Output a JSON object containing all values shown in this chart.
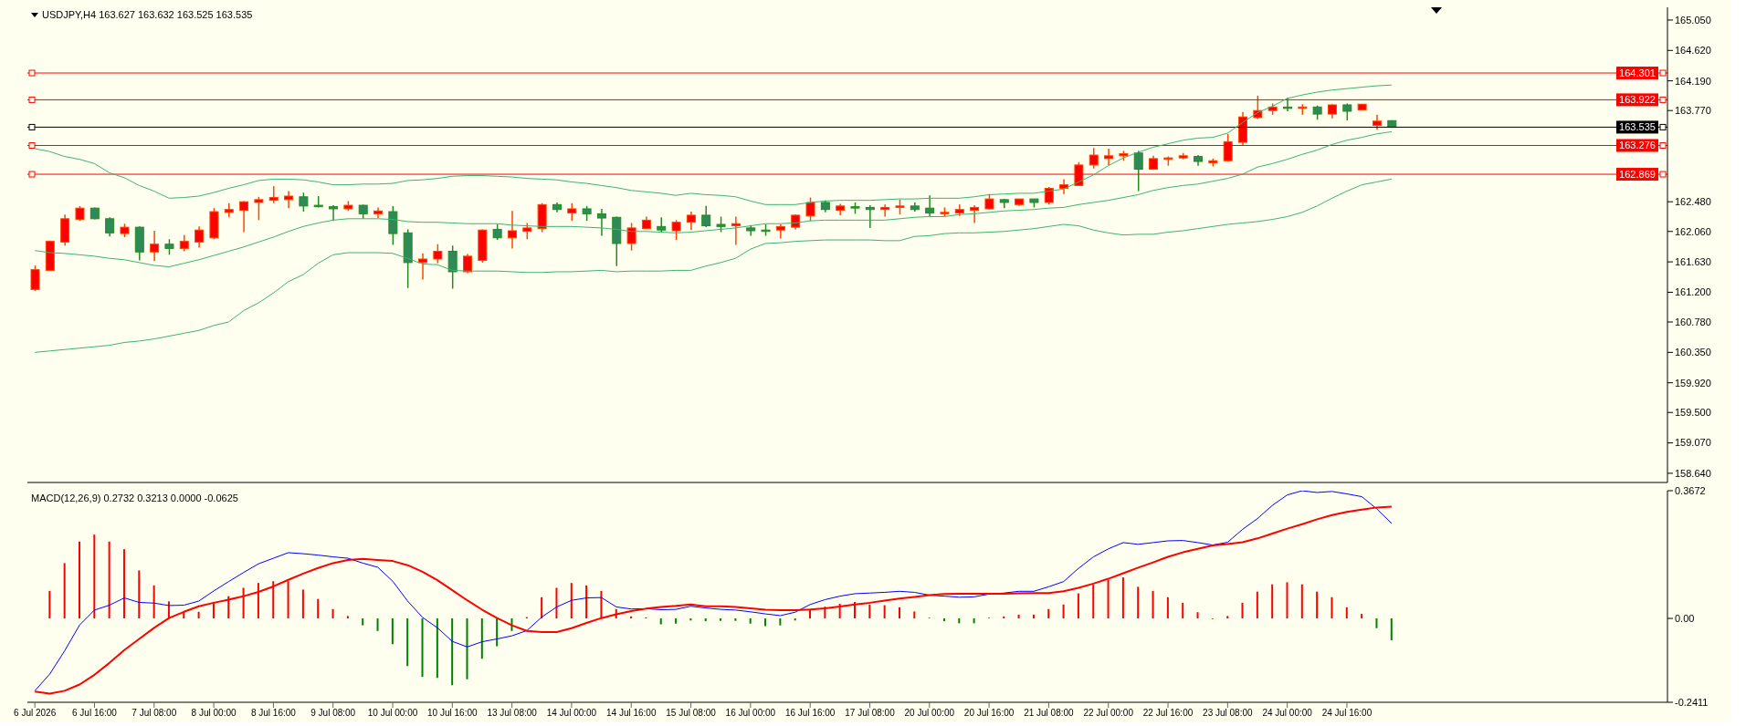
{
  "chart_data": [
    {
      "type": "candlestick",
      "title": "USDJPY,H4 163.627 163.632 163.525 163.535",
      "tick_labels": "y",
      "marker": "none",
      "categories": [
        null,
        null,
        null,
        null,
        null,
        null,
        null,
        null,
        null,
        null,
        null,
        null,
        null,
        null,
        null,
        null,
        null,
        null,
        null,
        null,
        null,
        null,
        null,
        null,
        null,
        null,
        null,
        null,
        null,
        null,
        null,
        null,
        null,
        null,
        null,
        null,
        null,
        null,
        null,
        null,
        null,
        null,
        null,
        null,
        null,
        null,
        null,
        null,
        null,
        null,
        null,
        null,
        null,
        null,
        null,
        null,
        null,
        null,
        null,
        null,
        null,
        null,
        null,
        null,
        null,
        null,
        null,
        null,
        null,
        null,
        null,
        null,
        null,
        null,
        null,
        null,
        null,
        null,
        null,
        null,
        null,
        null,
        null,
        null,
        null,
        null,
        null,
        null,
        null,
        null,
        null,
        null
      ],
      "ohlc": [
        [
          161.24,
          161.58,
          161.22,
          161.52
        ],
        [
          161.51,
          161.93,
          161.51,
          161.92
        ],
        [
          161.91,
          162.3,
          161.86,
          162.24
        ],
        [
          162.23,
          162.42,
          162.21,
          162.39
        ],
        [
          162.39,
          162.4,
          162.23,
          162.24
        ],
        [
          162.24,
          162.26,
          161.99,
          162.04
        ],
        [
          162.03,
          162.17,
          161.98,
          162.12
        ],
        [
          162.12,
          162.13,
          161.65,
          161.77
        ],
        [
          161.77,
          162.07,
          161.64,
          161.88
        ],
        [
          161.88,
          161.95,
          161.73,
          161.82
        ],
        [
          161.82,
          162.01,
          161.78,
          161.92
        ],
        [
          161.91,
          162.13,
          161.83,
          162.08
        ],
        [
          161.97,
          162.39,
          161.95,
          162.34
        ],
        [
          162.33,
          162.46,
          162.26,
          162.37
        ],
        [
          162.36,
          162.49,
          162.05,
          162.48
        ],
        [
          162.47,
          162.55,
          162.22,
          162.51
        ],
        [
          162.5,
          162.7,
          162.46,
          162.54
        ],
        [
          162.51,
          162.63,
          162.39,
          162.56
        ],
        [
          162.55,
          162.61,
          162.34,
          162.42
        ],
        [
          162.43,
          162.56,
          162.4,
          162.41
        ],
        [
          162.41,
          162.43,
          162.21,
          162.38
        ],
        [
          162.38,
          162.49,
          162.35,
          162.43
        ],
        [
          162.43,
          162.44,
          162.24,
          162.31
        ],
        [
          162.31,
          162.4,
          162.25,
          162.35
        ],
        [
          162.34,
          162.42,
          161.87,
          162.03
        ],
        [
          162.04,
          162.09,
          161.26,
          161.62
        ],
        [
          161.62,
          161.75,
          161.38,
          161.67
        ],
        [
          161.67,
          161.88,
          161.61,
          161.78
        ],
        [
          161.78,
          161.86,
          161.25,
          161.49
        ],
        [
          161.49,
          161.74,
          161.47,
          161.71
        ],
        [
          161.65,
          162.09,
          161.62,
          162.08
        ],
        [
          162.09,
          162.16,
          161.94,
          161.97
        ],
        [
          161.97,
          162.35,
          161.82,
          162.07
        ],
        [
          162.06,
          162.18,
          161.95,
          162.11
        ],
        [
          162.1,
          162.46,
          162.05,
          162.44
        ],
        [
          162.44,
          162.47,
          162.33,
          162.37
        ],
        [
          162.32,
          162.46,
          162.21,
          162.38
        ],
        [
          162.38,
          162.42,
          162.21,
          162.31
        ],
        [
          162.31,
          162.38,
          162.0,
          162.25
        ],
        [
          162.26,
          162.27,
          161.57,
          161.89
        ],
        [
          161.89,
          162.18,
          161.79,
          162.11
        ],
        [
          162.1,
          162.27,
          162.1,
          162.22
        ],
        [
          162.13,
          162.26,
          162.05,
          162.08
        ],
        [
          162.07,
          162.22,
          161.94,
          162.19
        ],
        [
          162.19,
          162.34,
          162.08,
          162.29
        ],
        [
          162.29,
          162.42,
          162.12,
          162.14
        ],
        [
          162.16,
          162.27,
          162.05,
          162.13
        ],
        [
          162.14,
          162.27,
          161.87,
          162.17
        ],
        [
          162.11,
          162.15,
          162.0,
          162.07
        ],
        [
          162.08,
          162.16,
          162.0,
          162.07
        ],
        [
          162.08,
          162.16,
          161.96,
          162.13
        ],
        [
          162.12,
          162.3,
          162.09,
          162.29
        ],
        [
          162.28,
          162.54,
          162.21,
          162.47
        ],
        [
          162.47,
          162.5,
          162.33,
          162.37
        ],
        [
          162.36,
          162.45,
          162.29,
          162.42
        ],
        [
          162.41,
          162.47,
          162.31,
          162.4
        ],
        [
          162.4,
          162.43,
          162.11,
          162.37
        ],
        [
          162.37,
          162.44,
          162.27,
          162.4
        ],
        [
          162.4,
          162.51,
          162.3,
          162.42
        ],
        [
          162.42,
          162.47,
          162.34,
          162.37
        ],
        [
          162.39,
          162.57,
          162.27,
          162.32
        ],
        [
          162.32,
          162.4,
          162.27,
          162.33
        ],
        [
          162.32,
          162.44,
          162.28,
          162.37
        ],
        [
          162.36,
          162.43,
          162.18,
          162.4
        ],
        [
          162.38,
          162.59,
          162.37,
          162.52
        ],
        [
          162.51,
          162.52,
          162.39,
          162.47
        ],
        [
          162.44,
          162.52,
          162.42,
          162.52
        ],
        [
          162.52,
          162.52,
          162.4,
          162.47
        ],
        [
          162.47,
          162.69,
          162.44,
          162.67
        ],
        [
          162.67,
          162.8,
          162.59,
          162.72
        ],
        [
          162.71,
          163.04,
          162.71,
          163.0
        ],
        [
          163.0,
          163.24,
          162.95,
          163.14
        ],
        [
          163.09,
          163.23,
          163.0,
          163.13
        ],
        [
          163.13,
          163.2,
          163.06,
          163.16
        ],
        [
          163.17,
          163.2,
          162.63,
          162.94
        ],
        [
          162.94,
          163.13,
          162.93,
          163.09
        ],
        [
          163.1,
          163.12,
          162.99,
          163.1
        ],
        [
          163.1,
          163.17,
          163.08,
          163.13
        ],
        [
          163.12,
          163.14,
          162.99,
          163.05
        ],
        [
          163.03,
          163.09,
          162.98,
          163.06
        ],
        [
          163.06,
          163.44,
          163.05,
          163.33
        ],
        [
          163.32,
          163.75,
          163.27,
          163.68
        ],
        [
          163.67,
          163.98,
          163.65,
          163.77
        ],
        [
          163.77,
          163.87,
          163.71,
          163.82
        ],
        [
          163.82,
          163.95,
          163.76,
          163.8
        ],
        [
          163.81,
          163.86,
          163.71,
          163.82
        ],
        [
          163.82,
          163.84,
          163.64,
          163.72
        ],
        [
          163.72,
          163.86,
          163.66,
          163.85
        ],
        [
          163.85,
          163.87,
          163.63,
          163.76
        ],
        [
          163.78,
          163.86,
          163.78,
          163.86
        ],
        [
          163.56,
          163.71,
          163.5,
          163.62
        ],
        [
          163.627,
          163.632,
          163.525,
          163.535
        ]
      ],
      "series": [
        {
          "type": "line",
          "color": "#3cb371",
          "values": [
            163.23,
            163.19,
            163.12,
            163.08,
            163.02,
            162.89,
            162.82,
            162.71,
            162.63,
            162.53,
            162.54,
            162.56,
            162.61,
            162.67,
            162.72,
            162.78,
            162.8,
            162.8,
            162.79,
            162.76,
            162.72,
            162.72,
            162.73,
            162.73,
            162.74,
            162.78,
            162.79,
            162.81,
            162.84,
            162.85,
            162.85,
            162.84,
            162.83,
            162.81,
            162.8,
            162.79,
            162.76,
            162.74,
            162.71,
            162.68,
            162.64,
            162.62,
            162.6,
            162.57,
            162.6,
            162.58,
            162.57,
            162.55,
            162.49,
            162.44,
            162.44,
            162.44,
            162.47,
            162.49,
            162.5,
            162.5,
            162.5,
            162.51,
            162.52,
            162.52,
            162.53,
            162.53,
            162.53,
            162.55,
            162.58,
            162.59,
            162.6,
            162.6,
            162.63,
            162.66,
            162.76,
            162.86,
            162.99,
            163.1,
            163.18,
            163.25,
            163.3,
            163.35,
            163.38,
            163.39,
            163.45,
            163.6,
            163.74,
            163.83,
            163.94,
            163.99,
            164.03,
            164.06,
            164.08,
            164.1,
            164.12,
            164.13
          ]
        },
        {
          "type": "line",
          "color": "#3cb371",
          "values": [
            161.79,
            161.76,
            161.75,
            161.73,
            161.71,
            161.68,
            161.66,
            161.62,
            161.58,
            161.56,
            161.61,
            161.66,
            161.72,
            161.78,
            161.84,
            161.91,
            161.98,
            162.06,
            162.13,
            162.18,
            162.22,
            162.24,
            162.24,
            162.24,
            162.23,
            162.2,
            162.19,
            162.19,
            162.18,
            162.17,
            162.17,
            162.17,
            162.15,
            162.14,
            162.13,
            162.13,
            162.13,
            162.12,
            162.11,
            162.09,
            162.06,
            162.06,
            162.05,
            162.04,
            162.05,
            162.07,
            162.09,
            162.11,
            162.14,
            162.17,
            162.17,
            162.18,
            162.21,
            162.22,
            162.22,
            162.22,
            162.22,
            162.22,
            162.24,
            162.26,
            162.27,
            162.27,
            162.3,
            162.31,
            162.33,
            162.35,
            162.36,
            162.37,
            162.39,
            162.4,
            162.44,
            162.47,
            162.5,
            162.54,
            162.58,
            162.64,
            162.68,
            162.71,
            162.73,
            162.77,
            162.81,
            162.87,
            162.97,
            163.02,
            163.08,
            163.15,
            163.21,
            163.29,
            163.35,
            163.39,
            163.44,
            163.47
          ]
        },
        {
          "type": "line",
          "color": "#3cb371",
          "values": [
            160.35,
            160.37,
            160.39,
            160.41,
            160.43,
            160.45,
            160.49,
            160.51,
            160.54,
            160.58,
            160.62,
            160.66,
            160.73,
            160.78,
            160.94,
            161.05,
            161.19,
            161.35,
            161.45,
            161.61,
            161.73,
            161.76,
            161.76,
            161.76,
            161.75,
            161.68,
            161.6,
            161.59,
            161.51,
            161.5,
            161.5,
            161.5,
            161.49,
            161.48,
            161.48,
            161.49,
            161.49,
            161.5,
            161.51,
            161.49,
            161.5,
            161.5,
            161.5,
            161.51,
            161.51,
            161.57,
            161.62,
            161.68,
            161.81,
            161.89,
            161.9,
            161.92,
            161.93,
            161.94,
            161.94,
            161.94,
            161.94,
            161.93,
            161.93,
            161.99,
            162.0,
            162.03,
            162.04,
            162.04,
            162.05,
            162.06,
            162.08,
            162.1,
            162.13,
            162.16,
            162.14,
            162.08,
            162.04,
            162.01,
            162.02,
            162.02,
            162.05,
            162.07,
            162.1,
            162.13,
            162.16,
            162.18,
            162.2,
            162.23,
            162.27,
            162.33,
            162.42,
            162.53,
            162.63,
            162.72,
            162.76,
            162.8
          ]
        }
      ],
      "ref_lines": [
        {
          "axis": "y",
          "value": 164.301,
          "label": "164.301",
          "color": "#ff0000"
        },
        {
          "axis": "y",
          "value": 163.922,
          "label": "163.922",
          "color": "#ff0000"
        },
        {
          "axis": "y",
          "value": 163.535,
          "label": "163.535",
          "color": "#000000"
        },
        {
          "axis": "y",
          "value": 163.276,
          "label": "163.276",
          "color": "#ff0000"
        },
        {
          "axis": "y",
          "value": 162.869,
          "label": "162.869",
          "color": "#ff0000"
        }
      ],
      "ylim": [
        158.51,
        165.23
      ],
      "yticks": [
        {
          "value": 165.05,
          "label": "165.050"
        },
        {
          "value": 164.62,
          "label": "164.620"
        },
        {
          "value": 164.19,
          "label": "164.190"
        },
        {
          "value": 163.77,
          "label": "163.770"
        },
        {
          "value": 162.48,
          "label": "162.480"
        },
        {
          "value": 162.06,
          "label": "162.060"
        },
        {
          "value": 161.63,
          "label": "161.630"
        },
        {
          "value": 161.2,
          "label": "161.200"
        },
        {
          "value": 160.78,
          "label": "160.780"
        },
        {
          "value": 160.35,
          "label": "160.350"
        },
        {
          "value": 159.92,
          "label": "159.920"
        },
        {
          "value": 159.5,
          "label": "159.500"
        },
        {
          "value": 159.07,
          "label": "159.070"
        },
        {
          "value": 158.64,
          "label": "158.640"
        }
      ]
    },
    {
      "type": "bar",
      "title": "MACD(12,26,9) 0.2732 0.3213 0.0000 -0.0625",
      "marker": "none",
      "categories": [
        "6 Jul 2026",
        null,
        null,
        null,
        "6 Jul 16:00",
        null,
        null,
        null,
        "7 Jul 08:00",
        null,
        null,
        null,
        "8 Jul 00:00",
        null,
        null,
        null,
        "8 Jul 16:00",
        null,
        null,
        null,
        "9 Jul 08:00",
        null,
        null,
        null,
        "10 Jul 00:00",
        null,
        null,
        null,
        "10 Jul 16:00",
        null,
        null,
        null,
        "13 Jul 08:00",
        null,
        null,
        null,
        "14 Jul 00:00",
        null,
        null,
        null,
        "14 Jul 16:00",
        null,
        null,
        null,
        "15 Jul 08:00",
        null,
        null,
        null,
        "16 Jul 00:00",
        null,
        null,
        null,
        "16 Jul 16:00",
        null,
        null,
        null,
        "17 Jul 08:00",
        null,
        null,
        null,
        "20 Jul 00:00",
        null,
        null,
        null,
        "20 Jul 16:00",
        null,
        null,
        null,
        "21 Jul 08:00",
        null,
        null,
        null,
        "22 Jul 00:00",
        null,
        null,
        null,
        "22 Jul 16:00",
        null,
        null,
        null,
        "23 Jul 08:00",
        null,
        null,
        null,
        "24 Jul 00:00",
        null,
        null,
        null,
        "24 Jul 16:00",
        null,
        null,
        null
      ],
      "series": [
        {
          "type": "bar",
          "values": [
            null,
            0.079,
            0.159,
            0.221,
            0.241,
            0.221,
            0.199,
            0.138,
            0.095,
            0.049,
            0.019,
            0.019,
            0.046,
            0.064,
            0.088,
            0.102,
            0.107,
            0.107,
            0.083,
            0.056,
            0.027,
            0.007,
            -0.02,
            -0.036,
            -0.074,
            -0.137,
            -0.168,
            -0.171,
            -0.192,
            -0.175,
            -0.116,
            -0.08,
            -0.036,
            0.004,
            0.061,
            0.088,
            0.102,
            0.095,
            0.079,
            0.027,
            0.006,
            0.003,
            -0.017,
            -0.015,
            -0.006,
            -0.008,
            -0.007,
            -0.007,
            -0.015,
            -0.022,
            -0.02,
            -0.006,
            0.026,
            0.034,
            0.042,
            0.047,
            0.04,
            0.038,
            0.032,
            0.02,
            0.002,
            -0.008,
            -0.014,
            -0.014,
            0.002,
            0.006,
            0.011,
            0.011,
            0.027,
            0.04,
            0.072,
            0.097,
            0.111,
            0.118,
            0.091,
            0.079,
            0.061,
            0.045,
            0.018,
            -0.002,
            0.007,
            0.045,
            0.077,
            0.098,
            0.104,
            0.098,
            0.077,
            0.061,
            0.032,
            0.013,
            -0.028,
            -0.063
          ],
          "colors": [
            "#ff0000",
            "#ff0000",
            "#ff0000",
            "#ff0000",
            "#ff0000",
            "#ff0000",
            "#ff0000",
            "#ff0000",
            "#ff0000",
            "#ff0000",
            "#ff0000",
            "#ff0000",
            "#ff0000",
            "#ff0000",
            "#ff0000",
            "#ff0000",
            "#ff0000",
            "#ff0000",
            "#ff0000",
            "#ff0000",
            "#ff0000",
            "#ff0000",
            "#008000",
            "#008000",
            "#008000",
            "#008000",
            "#008000",
            "#008000",
            "#008000",
            "#008000",
            "#008000",
            "#008000",
            "#008000",
            "#ff0000",
            "#ff0000",
            "#ff0000",
            "#ff0000",
            "#ff0000",
            "#ff0000",
            "#ff0000",
            "#ff0000",
            "#ff0000",
            "#008000",
            "#008000",
            "#008000",
            "#008000",
            "#008000",
            "#008000",
            "#008000",
            "#008000",
            "#008000",
            "#008000",
            "#ff0000",
            "#ff0000",
            "#ff0000",
            "#ff0000",
            "#ff0000",
            "#ff0000",
            "#ff0000",
            "#ff0000",
            "#ff0000",
            "#008000",
            "#008000",
            "#008000",
            "#ff0000",
            "#ff0000",
            "#ff0000",
            "#ff0000",
            "#ff0000",
            "#ff0000",
            "#ff0000",
            "#ff0000",
            "#ff0000",
            "#ff0000",
            "#ff0000",
            "#ff0000",
            "#ff0000",
            "#ff0000",
            "#ff0000",
            "#008000",
            "#ff0000",
            "#ff0000",
            "#ff0000",
            "#ff0000",
            "#ff0000",
            "#ff0000",
            "#ff0000",
            "#ff0000",
            "#ff0000",
            "#ff0000",
            "#008000",
            "#008000"
          ]
        },
        {
          "type": "line",
          "color": "#0000ff",
          "values": [
            -0.208,
            -0.16,
            -0.093,
            -0.019,
            0.024,
            0.038,
            0.059,
            0.046,
            0.044,
            0.037,
            0.038,
            0.05,
            0.079,
            0.106,
            0.132,
            0.157,
            0.173,
            0.189,
            0.186,
            0.182,
            0.177,
            0.173,
            0.159,
            0.147,
            0.107,
            0.05,
            0.003,
            -0.027,
            -0.066,
            -0.082,
            -0.067,
            -0.059,
            -0.05,
            -0.035,
            0.004,
            0.033,
            0.052,
            0.059,
            0.06,
            0.033,
            0.027,
            0.028,
            0.025,
            0.026,
            0.035,
            0.03,
            0.026,
            0.024,
            0.019,
            0.013,
            0.008,
            0.018,
            0.04,
            0.054,
            0.064,
            0.071,
            0.073,
            0.075,
            0.078,
            0.075,
            0.067,
            0.064,
            0.061,
            0.062,
            0.07,
            0.073,
            0.078,
            0.078,
            0.091,
            0.106,
            0.144,
            0.177,
            0.2,
            0.218,
            0.213,
            0.218,
            0.223,
            0.224,
            0.218,
            0.211,
            0.219,
            0.256,
            0.287,
            0.325,
            0.355,
            0.367,
            0.362,
            0.365,
            0.358,
            0.35,
            0.315,
            0.273
          ]
        },
        {
          "type": "line",
          "color": "#ff0000",
          "values": [
            -0.21,
            -0.216,
            -0.208,
            -0.19,
            -0.162,
            -0.128,
            -0.091,
            -0.059,
            -0.027,
            0.001,
            0.019,
            0.035,
            0.045,
            0.054,
            0.064,
            0.076,
            0.092,
            0.111,
            0.129,
            0.145,
            0.159,
            0.168,
            0.171,
            0.168,
            0.165,
            0.153,
            0.134,
            0.11,
            0.081,
            0.052,
            0.025,
            0.001,
            -0.02,
            -0.036,
            -0.039,
            -0.039,
            -0.028,
            -0.013,
            0.001,
            0.012,
            0.021,
            0.028,
            0.033,
            0.036,
            0.04,
            0.035,
            0.035,
            0.033,
            0.029,
            0.025,
            0.024,
            0.024,
            0.026,
            0.029,
            0.034,
            0.04,
            0.045,
            0.051,
            0.057,
            0.062,
            0.067,
            0.07,
            0.071,
            0.071,
            0.071,
            0.071,
            0.072,
            0.073,
            0.073,
            0.078,
            0.088,
            0.1,
            0.114,
            0.13,
            0.146,
            0.161,
            0.177,
            0.19,
            0.2,
            0.21,
            0.214,
            0.219,
            0.23,
            0.244,
            0.258,
            0.271,
            0.285,
            0.297,
            0.306,
            0.313,
            0.319,
            0.321
          ]
        }
      ],
      "ylim": [
        -0.2411,
        0.3672
      ],
      "yticks": [
        0.3672,
        {
          "value": 0,
          "label": "0.00"
        },
        -0.2411
      ]
    }
  ]
}
